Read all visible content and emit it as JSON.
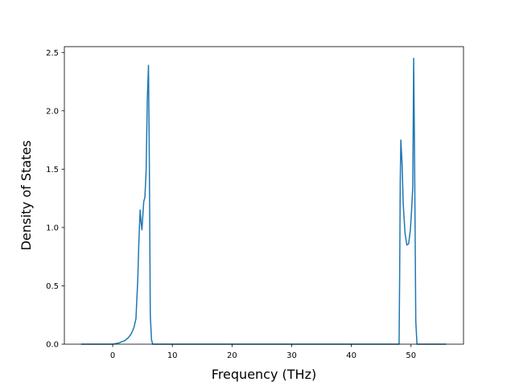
{
  "chart_data": {
    "type": "line",
    "title": "",
    "xlabel": "Frequency (THz)",
    "ylabel": "Density of States",
    "xlim": [
      -8.1,
      58.8
    ],
    "ylim": [
      0,
      2.55
    ],
    "xticks": [
      0,
      10,
      20,
      30,
      40,
      50
    ],
    "yticks": [
      0.0,
      0.5,
      1.0,
      1.5,
      2.0,
      2.5
    ],
    "ytick_labels": [
      "0.0",
      "0.5",
      "1.0",
      "1.5",
      "2.0",
      "2.5"
    ],
    "grid": false,
    "legend": "none",
    "color": "#1f77b4",
    "series": [
      {
        "x": [
          -5.3,
          -2.0,
          0.0,
          1.0,
          1.5,
          2.0,
          2.5,
          3.0,
          3.3,
          3.6,
          3.9,
          4.2,
          4.4,
          4.6,
          4.75,
          4.9,
          5.0,
          5.2,
          5.4,
          5.6,
          5.8,
          6.0,
          6.15,
          6.3,
          6.5,
          6.7,
          7.0,
          10.0,
          20.0,
          30.0,
          40.0,
          47.0,
          48.0,
          48.1,
          48.2,
          48.3,
          48.5,
          48.7,
          49.0,
          49.3,
          49.6,
          49.9,
          50.1,
          50.3,
          50.45,
          50.6,
          50.8,
          51.0,
          55.9
        ],
        "y": [
          0.0,
          0.0,
          0.0,
          0.01,
          0.02,
          0.03,
          0.05,
          0.08,
          0.11,
          0.15,
          0.22,
          0.55,
          0.9,
          1.15,
          1.05,
          0.98,
          1.06,
          1.22,
          1.26,
          1.48,
          2.1,
          2.39,
          1.5,
          0.25,
          0.04,
          0.0,
          0.0,
          0.0,
          0.0,
          0.0,
          0.0,
          0.0,
          0.0,
          0.6,
          1.4,
          1.75,
          1.55,
          1.2,
          0.95,
          0.85,
          0.86,
          0.98,
          1.15,
          1.35,
          2.45,
          1.6,
          0.2,
          0.0,
          0.0
        ]
      }
    ]
  }
}
